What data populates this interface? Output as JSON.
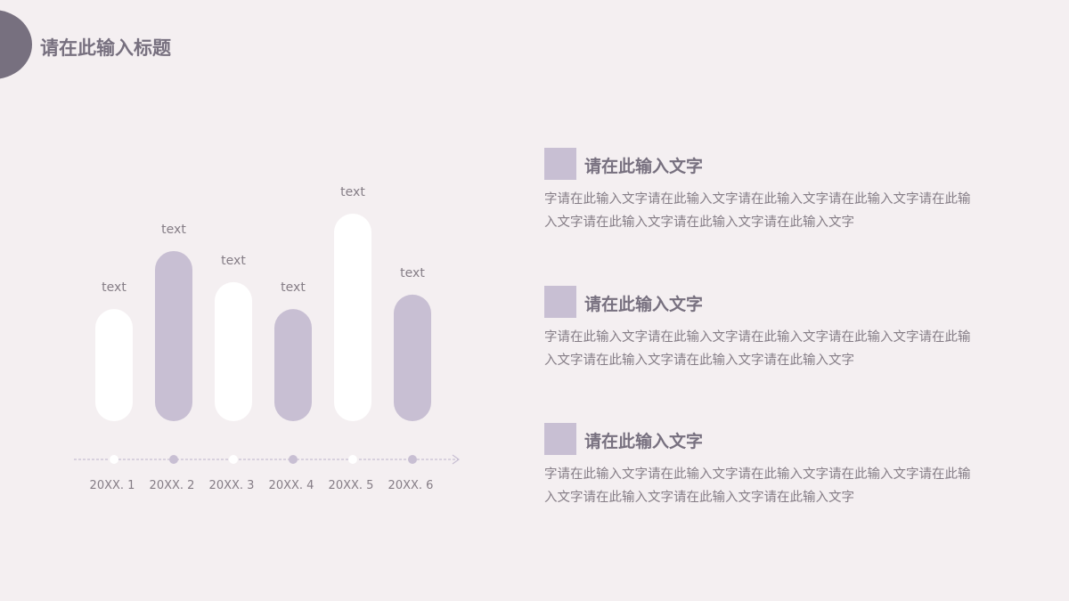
{
  "header": {
    "title": "请在此输入标题"
  },
  "colors": {
    "background": "#f4eff1",
    "dark": "#77707f",
    "accent": "#c8bfd3",
    "bar_light": "#ffffff",
    "text": "#857d86"
  },
  "chart_data": {
    "type": "bar",
    "categories": [
      "20XX. 1",
      "20XX. 2",
      "20XX. 3",
      "20XX. 4",
      "20XX. 5",
      "20XX. 6"
    ],
    "values": [
      54,
      82,
      67,
      54,
      100,
      61
    ],
    "data_labels": [
      "text",
      "text",
      "text",
      "text",
      "text",
      "text"
    ],
    "bar_colors": [
      "#ffffff",
      "#c8bfd3",
      "#ffffff",
      "#c8bfd3",
      "#ffffff",
      "#c8bfd3"
    ],
    "title": "",
    "xlabel": "",
    "ylabel": "",
    "ylim": [
      0,
      100
    ],
    "grid": false
  },
  "blocks": [
    {
      "heading": "请在此输入文字",
      "body": "字请在此输入文字请在此输入文字请在此输入文字请在此输入文字请在此输入文字请在此输入文字请在此输入文字请在此输入文字"
    },
    {
      "heading": "请在此输入文字",
      "body": "字请在此输入文字请在此输入文字请在此输入文字请在此输入文字请在此输入文字请在此输入文字请在此输入文字请在此输入文字"
    },
    {
      "heading": "请在此输入文字",
      "body": "字请在此输入文字请在此输入文字请在此输入文字请在此输入文字请在此输入文字请在此输入文字请在此输入文字请在此输入文字"
    }
  ]
}
